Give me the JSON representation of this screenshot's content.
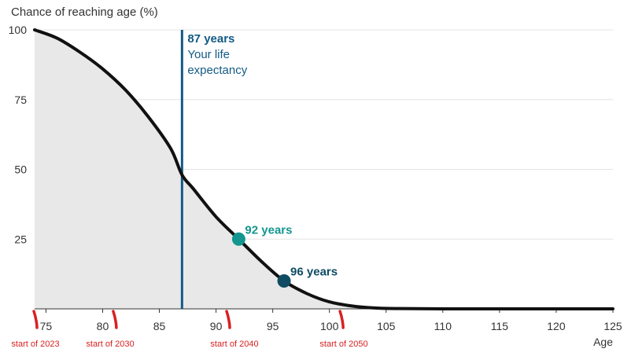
{
  "chart_data": {
    "type": "area",
    "title": "Chance of reaching age (%)",
    "xlabel": "Age",
    "ylabel": "",
    "xlim": [
      74,
      125
    ],
    "ylim": [
      0,
      100
    ],
    "x_ticks": [
      75,
      80,
      85,
      90,
      95,
      100,
      105,
      110,
      115,
      120,
      125
    ],
    "y_ticks": [
      25,
      50,
      75,
      100
    ],
    "grid": "horizontal",
    "colors": {
      "curve": "#111111",
      "fill": "#e8e8e8",
      "expectancy_line": "#135a85",
      "marker_92": "#12968f",
      "marker_96": "#0f4c63",
      "annotation": "#d92020"
    },
    "series": [
      {
        "x": [
          74,
          76,
          78,
          80,
          82,
          84,
          86,
          87,
          88,
          90,
          92,
          94,
          96,
          98,
          100,
          102,
          104,
          106,
          110,
          115,
          120,
          125
        ],
        "y": [
          100,
          97,
          92,
          86,
          78.5,
          69,
          57.5,
          48,
          43,
          33,
          25,
          17,
          10,
          5.5,
          2.5,
          1,
          0.3,
          0.1,
          0,
          0,
          0,
          0
        ]
      }
    ],
    "life_expectancy": {
      "age": 87,
      "value_label": "87 years",
      "text_lines": [
        "Your life",
        "expectancy"
      ]
    },
    "markers": [
      {
        "age": 92,
        "chance": 25,
        "label": "92 years"
      },
      {
        "age": 96,
        "chance": 10,
        "label": "96 years"
      }
    ],
    "annotations": [
      {
        "age": 74,
        "label": "start of 2023"
      },
      {
        "age": 81,
        "label": "start of 2030"
      },
      {
        "age": 91,
        "label": "start of 2040"
      },
      {
        "age": 101,
        "label": "start of 2050"
      }
    ]
  }
}
